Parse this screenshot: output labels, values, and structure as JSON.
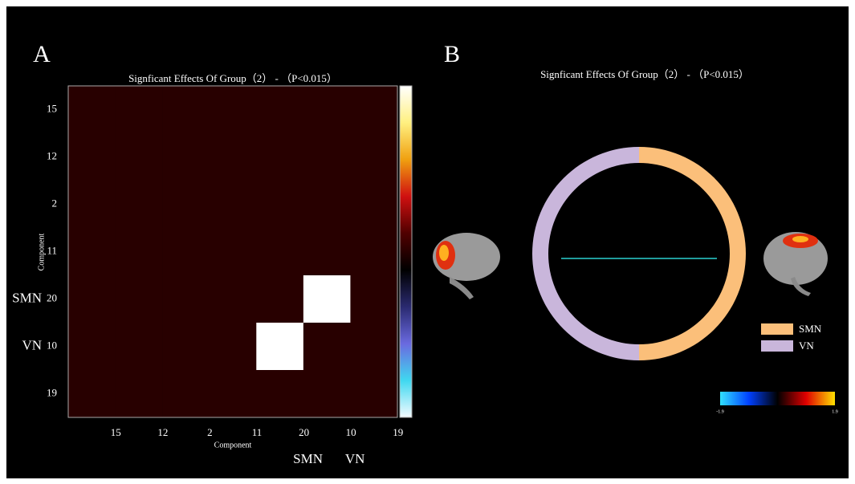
{
  "chart_data": [
    {
      "type": "heatmap",
      "label": "A",
      "title": "Signficant Effects Of Group（2） - （P<0.015）",
      "x_label": "Component",
      "y_label": "Component",
      "categories": [
        "15",
        "12",
        "2",
        "11",
        "20",
        "10",
        "19"
      ],
      "network_labels": [
        null,
        null,
        null,
        null,
        "SMN",
        "VN",
        null
      ],
      "matrix": [
        [
          0,
          0,
          0,
          0,
          0,
          0,
          0
        ],
        [
          0,
          0,
          0,
          0,
          0,
          0,
          0
        ],
        [
          0,
          0,
          0,
          0,
          0,
          0,
          0
        ],
        [
          0,
          0,
          0,
          0,
          0,
          0,
          0
        ],
        [
          0,
          0,
          0,
          0,
          0,
          1,
          0
        ],
        [
          0,
          0,
          0,
          0,
          1,
          0,
          0
        ],
        [
          0,
          0,
          0,
          0,
          0,
          0,
          0
        ]
      ],
      "zlim": [
        -1,
        1
      ],
      "colorscale": [
        "#f4fbff",
        "#40d8f0",
        "#6a6ae0",
        "#2a2a70",
        "#000000",
        "#500000",
        "#d01010",
        "#f0a010",
        "#fff080",
        "#ffffff"
      ]
    },
    {
      "type": "chord",
      "label": "B",
      "title": "Signficant Effects Of Group（2） - （P<0.015）",
      "groups": [
        {
          "name": "SMN",
          "color": "#fbbf7a"
        },
        {
          "name": "VN",
          "color": "#c9b6db"
        }
      ],
      "links": [
        {
          "source": "SMN",
          "target": "VN",
          "color": "#2ad0d0"
        }
      ],
      "colorbar": {
        "ticks": [
          -1.9,
          1.9
        ],
        "colors": [
          "#30e0ff",
          "#0040ff",
          "#000000",
          "#e00000",
          "#ffe000"
        ]
      }
    }
  ]
}
